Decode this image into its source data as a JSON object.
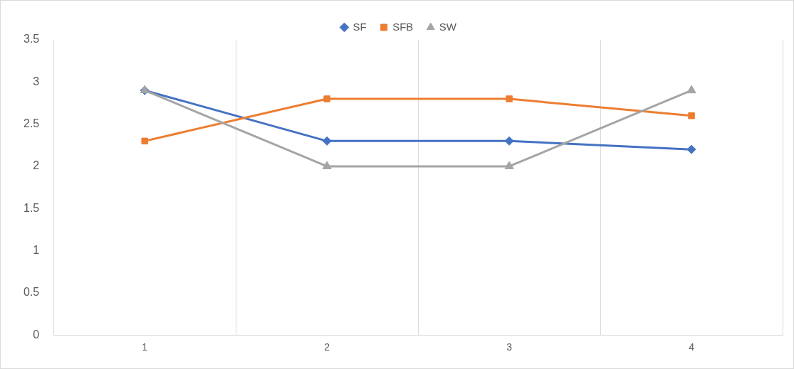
{
  "chart_data": {
    "type": "line",
    "categories": [
      "1",
      "2",
      "3",
      "4"
    ],
    "series": [
      {
        "name": "SF",
        "color": "#4472c4",
        "marker": "diamond",
        "values": [
          2.9,
          2.3,
          2.3,
          2.2
        ]
      },
      {
        "name": "SFB",
        "color": "#ed7d31",
        "marker": "square",
        "values": [
          2.3,
          2.8,
          2.8,
          2.6
        ]
      },
      {
        "name": "SW",
        "color": "#a5a5a5",
        "marker": "triangle",
        "values": [
          2.9,
          2.0,
          2.0,
          2.9
        ]
      }
    ],
    "ylim": [
      0,
      3.5
    ],
    "yticks": [
      0,
      0.5,
      1,
      1.5,
      2,
      2.5,
      3,
      3.5
    ],
    "grid": "x",
    "legend": "top",
    "line_style": "solid"
  }
}
